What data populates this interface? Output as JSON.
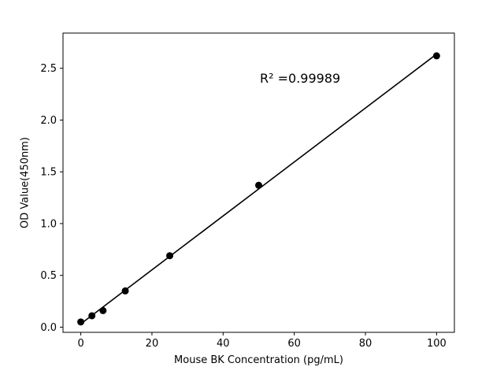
{
  "chart_data": {
    "type": "scatter",
    "title": "",
    "xlabel": "Mouse BK Concentration (pg/mL)",
    "ylabel": "OD Value(450nm)",
    "annotation": "R² =0.99989",
    "x": [
      0,
      3.125,
      6.25,
      12.5,
      25,
      50,
      100
    ],
    "y": [
      0.05,
      0.11,
      0.16,
      0.35,
      0.69,
      1.37,
      2.62
    ],
    "fit_line": {
      "x": [
        0,
        100
      ],
      "y": [
        0.032,
        2.637
      ]
    },
    "xlim": [
      -5,
      105
    ],
    "ylim": [
      -0.05,
      2.84
    ],
    "xticks": [
      0,
      20,
      40,
      60,
      80,
      100
    ],
    "yticks": [
      0.0,
      0.5,
      1.0,
      1.5,
      2.0,
      2.5
    ],
    "grid": false,
    "legend": "none",
    "marker_color": "#000000",
    "line_color": "#000000",
    "background_color": "#ffffff"
  }
}
